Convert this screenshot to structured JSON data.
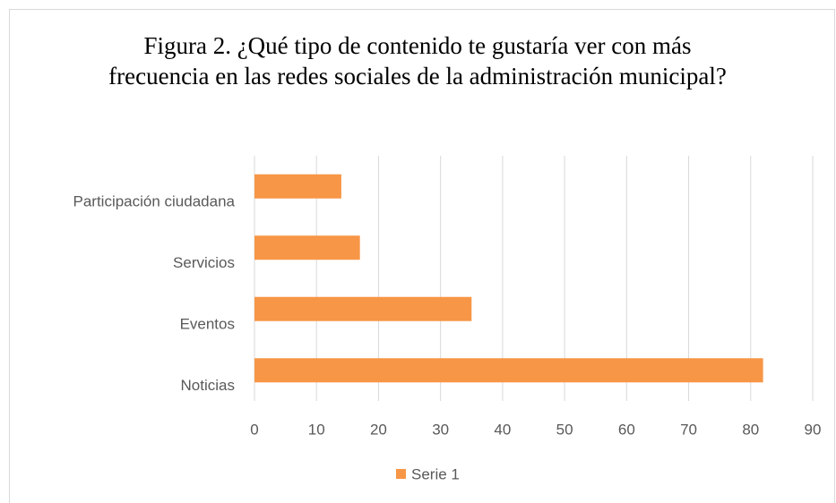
{
  "chart_data": {
    "type": "bar",
    "orientation": "horizontal",
    "title": "Figura 2. ¿Qué tipo de contenido te gustaría ver con más frecuencia en las redes sociales de la administración municipal?",
    "categories": [
      "Noticias",
      "Eventos",
      "Servicios",
      "Participación ciudadana"
    ],
    "series": [
      {
        "name": "Serie 1",
        "color": "#f79646",
        "values": [
          82,
          35,
          17,
          14
        ]
      }
    ],
    "xlim": [
      0,
      90
    ],
    "xticks": [
      0,
      10,
      20,
      30,
      40,
      50,
      60,
      70,
      80,
      90
    ],
    "grid": true,
    "legend": "bottom"
  }
}
